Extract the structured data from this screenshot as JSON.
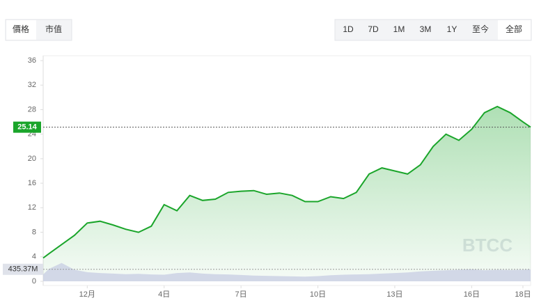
{
  "tabs": [
    "價格",
    "市值"
  ],
  "ranges": [
    "1D",
    "7D",
    "1M",
    "3M",
    "1Y",
    "至今",
    "全部"
  ],
  "watermark": "BTCC",
  "current_volume_label": "435.37M",
  "chart_data": {
    "type": "line",
    "x": [
      -0.72,
      -0.5,
      0,
      0.5,
      1,
      1.5,
      2,
      2.5,
      3,
      3.5,
      4,
      4.5,
      5,
      5.5,
      6,
      6.5,
      7,
      7.5,
      8,
      8.5,
      9,
      9.5,
      10,
      10.5,
      11,
      11.5,
      12,
      12.5,
      13,
      13.5,
      14,
      14.5,
      15,
      15.5,
      16,
      16.5,
      17,
      17.5,
      18,
      18.3
    ],
    "xlim": [
      -0.72,
      18.3
    ],
    "xticks": [
      {
        "value": 1,
        "label": "12月"
      },
      {
        "value": 4,
        "label": "4日"
      },
      {
        "value": 7,
        "label": "7日"
      },
      {
        "value": 10,
        "label": "10日"
      },
      {
        "value": 13,
        "label": "13日"
      },
      {
        "value": 16,
        "label": "16日"
      },
      {
        "value": 18,
        "label": "18日"
      }
    ],
    "ylim": [
      0,
      36
    ],
    "yticks": [
      0,
      4,
      8,
      12,
      16,
      20,
      24,
      28,
      32,
      36
    ],
    "y2lim": [
      0,
      8000
    ],
    "series": [
      {
        "color": "#1aa52a",
        "values": [
          3.8,
          4.5,
          6,
          7.5,
          9.5,
          9.8,
          9.2,
          8.5,
          8.0,
          9.0,
          12.5,
          11.5,
          14,
          13.2,
          13.4,
          14.5,
          14.7,
          14.8,
          14.2,
          14.4,
          14.0,
          13.0,
          13.0,
          13.8,
          13.5,
          14.5,
          17.5,
          18.5,
          18,
          17.5,
          19,
          22,
          24,
          23,
          24.8,
          27.5,
          28.5,
          27.5,
          26,
          25.14
        ]
      },
      {
        "color": "#c9cfe3",
        "axis": "y2",
        "values": [
          250,
          450,
          665,
          420,
          330,
          300,
          280,
          260,
          270,
          250,
          240,
          300,
          320,
          280,
          260,
          250,
          230,
          210,
          200,
          190,
          180,
          170,
          190,
          220,
          240,
          250,
          260,
          280,
          300,
          320,
          360,
          380,
          400,
          420,
          440,
          400,
          420,
          410,
          420,
          435.37
        ]
      }
    ]
  }
}
